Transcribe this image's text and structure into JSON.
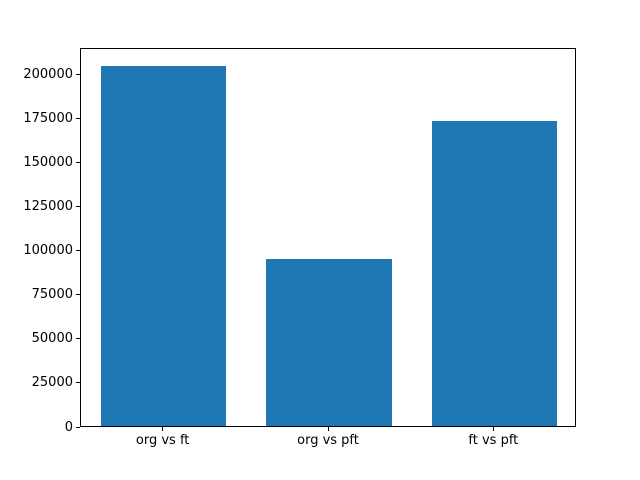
{
  "chart_data": {
    "type": "bar",
    "categories": [
      "org vs ft",
      "org vs pft",
      "ft vs pft"
    ],
    "values": [
      204000,
      95000,
      173000
    ],
    "title": "",
    "xlabel": "",
    "ylabel": "",
    "ylim": [
      0,
      215000
    ],
    "yticks": [
      0,
      25000,
      50000,
      75000,
      100000,
      125000,
      150000,
      175000,
      200000
    ],
    "bar_color": "#1f77b4",
    "background_color": "#ffffff",
    "axis_color": "#000000",
    "grid": false,
    "legend": null
  }
}
